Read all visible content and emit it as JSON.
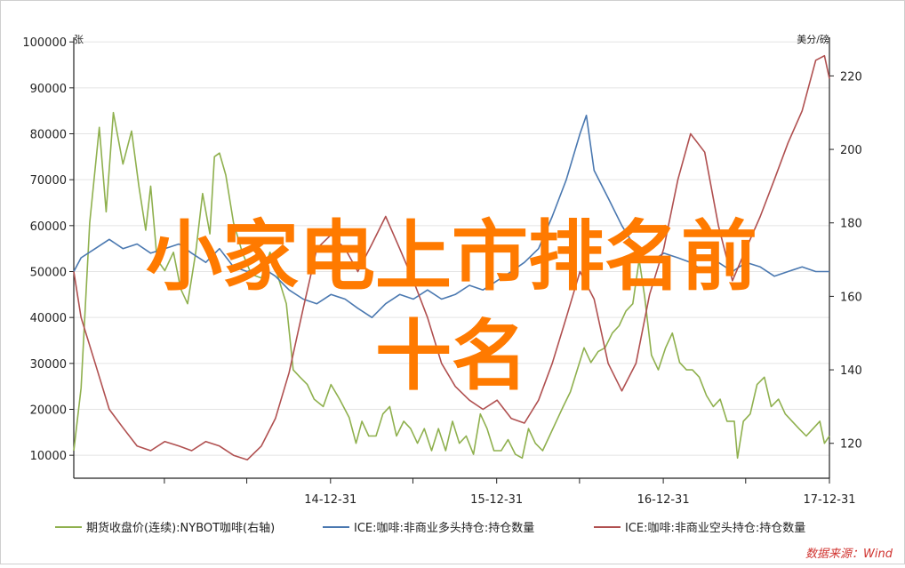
{
  "chart_data": {
    "type": "line",
    "title": "",
    "y_left": {
      "unit": "张",
      "range": [
        5000,
        101000
      ],
      "ticks": [
        10000,
        20000,
        30000,
        40000,
        50000,
        60000,
        70000,
        80000,
        90000,
        100000
      ]
    },
    "y_right": {
      "unit": "美分/磅",
      "range": [
        110.5,
        230.5
      ],
      "ticks": [
        120,
        140,
        160,
        180,
        200,
        220
      ]
    },
    "x_axis": {
      "type": "date",
      "range": [
        "2013-06-15",
        "2017-12-31"
      ],
      "labeled_ticks": [
        "14-12-31",
        "15-12-31",
        "16-12-31",
        "17-12-31"
      ],
      "tick_dates": [
        "2013-12-31",
        "2014-06-30",
        "2014-12-31",
        "2015-06-30",
        "2015-12-31",
        "2016-06-30",
        "2016-12-31",
        "2017-06-30",
        "2017-12-31"
      ]
    },
    "grid": "horizontal",
    "legend_position": "bottom",
    "series": [
      {
        "name": "期货收盘价(连续):NYBOT咖啡(右轴)",
        "axis": "right",
        "color": "#8fb04e",
        "points": [
          [
            "2013-06-15",
            118
          ],
          [
            "2013-07-01",
            135
          ],
          [
            "2013-07-20",
            180
          ],
          [
            "2013-08-10",
            206
          ],
          [
            "2013-08-25",
            183
          ],
          [
            "2013-09-10",
            210
          ],
          [
            "2013-10-01",
            196
          ],
          [
            "2013-10-20",
            205
          ],
          [
            "2013-11-05",
            190
          ],
          [
            "2013-11-20",
            178
          ],
          [
            "2013-12-01",
            190
          ],
          [
            "2013-12-15",
            170
          ],
          [
            "2014-01-01",
            167
          ],
          [
            "2014-01-20",
            172
          ],
          [
            "2014-02-05",
            162
          ],
          [
            "2014-02-20",
            158
          ],
          [
            "2014-03-10",
            172
          ],
          [
            "2014-03-25",
            188
          ],
          [
            "2014-04-10",
            177
          ],
          [
            "2014-04-20",
            198
          ],
          [
            "2014-05-01",
            199
          ],
          [
            "2014-05-15",
            193
          ],
          [
            "2014-06-01",
            180
          ],
          [
            "2014-06-20",
            172
          ],
          [
            "2014-07-10",
            166
          ],
          [
            "2014-08-01",
            165
          ],
          [
            "2014-08-20",
            172
          ],
          [
            "2014-09-05",
            166
          ],
          [
            "2014-09-25",
            158
          ],
          [
            "2014-10-10",
            140
          ],
          [
            "2014-10-25",
            138
          ],
          [
            "2014-11-10",
            136
          ],
          [
            "2014-11-25",
            132
          ],
          [
            "2014-12-15",
            130
          ],
          [
            "2015-01-01",
            136
          ],
          [
            "2015-01-20",
            132
          ],
          [
            "2015-02-10",
            127
          ],
          [
            "2015-02-25",
            120
          ],
          [
            "2015-03-10",
            126
          ],
          [
            "2015-03-25",
            122
          ],
          [
            "2015-04-10",
            122
          ],
          [
            "2015-04-25",
            128
          ],
          [
            "2015-05-10",
            130
          ],
          [
            "2015-05-25",
            122
          ],
          [
            "2015-06-10",
            126
          ],
          [
            "2015-06-25",
            124
          ],
          [
            "2015-07-10",
            120
          ],
          [
            "2015-07-25",
            124
          ],
          [
            "2015-08-10",
            118
          ],
          [
            "2015-08-25",
            124
          ],
          [
            "2015-09-10",
            118
          ],
          [
            "2015-09-25",
            126
          ],
          [
            "2015-10-10",
            120
          ],
          [
            "2015-10-25",
            122
          ],
          [
            "2015-11-10",
            117
          ],
          [
            "2015-11-25",
            128
          ],
          [
            "2015-12-10",
            124
          ],
          [
            "2015-12-25",
            118
          ],
          [
            "2016-01-10",
            118
          ],
          [
            "2016-01-25",
            121
          ],
          [
            "2016-02-10",
            117
          ],
          [
            "2016-02-25",
            116
          ],
          [
            "2016-03-10",
            124
          ],
          [
            "2016-03-25",
            120
          ],
          [
            "2016-04-10",
            118
          ],
          [
            "2016-04-25",
            122
          ],
          [
            "2016-05-10",
            126
          ],
          [
            "2016-05-25",
            130
          ],
          [
            "2016-06-10",
            134
          ],
          [
            "2016-06-25",
            140
          ],
          [
            "2016-07-10",
            146
          ],
          [
            "2016-07-25",
            142
          ],
          [
            "2016-08-10",
            145
          ],
          [
            "2016-08-25",
            146
          ],
          [
            "2016-09-10",
            150
          ],
          [
            "2016-09-25",
            152
          ],
          [
            "2016-10-10",
            156
          ],
          [
            "2016-10-25",
            158
          ],
          [
            "2016-11-08",
            170
          ],
          [
            "2016-11-20",
            160
          ],
          [
            "2016-12-05",
            144
          ],
          [
            "2016-12-20",
            140
          ],
          [
            "2017-01-05",
            146
          ],
          [
            "2017-01-20",
            150
          ],
          [
            "2017-02-05",
            142
          ],
          [
            "2017-02-20",
            140
          ],
          [
            "2017-03-05",
            140
          ],
          [
            "2017-03-20",
            138
          ],
          [
            "2017-04-05",
            133
          ],
          [
            "2017-04-20",
            130
          ],
          [
            "2017-05-05",
            132
          ],
          [
            "2017-05-20",
            126
          ],
          [
            "2017-06-05",
            126
          ],
          [
            "2017-06-12",
            116
          ],
          [
            "2017-06-25",
            126
          ],
          [
            "2017-07-10",
            128
          ],
          [
            "2017-07-25",
            136
          ],
          [
            "2017-08-10",
            138
          ],
          [
            "2017-08-25",
            130
          ],
          [
            "2017-09-10",
            132
          ],
          [
            "2017-09-25",
            128
          ],
          [
            "2017-10-10",
            126
          ],
          [
            "2017-10-25",
            124
          ],
          [
            "2017-11-10",
            122
          ],
          [
            "2017-11-25",
            124
          ],
          [
            "2017-12-10",
            126
          ],
          [
            "2017-12-20",
            120
          ],
          [
            "2017-12-31",
            122
          ]
        ]
      },
      {
        "name": "ICE:咖啡:非商业多头持仓:持仓数量",
        "axis": "left",
        "color": "#4a78b0",
        "points": [
          [
            "2013-06-15",
            50000
          ],
          [
            "2013-07-01",
            53000
          ],
          [
            "2013-08-01",
            55000
          ],
          [
            "2013-09-01",
            57000
          ],
          [
            "2013-10-01",
            55000
          ],
          [
            "2013-11-01",
            56000
          ],
          [
            "2013-12-01",
            54000
          ],
          [
            "2014-01-01",
            55000
          ],
          [
            "2014-02-01",
            56000
          ],
          [
            "2014-03-01",
            54000
          ],
          [
            "2014-04-01",
            52000
          ],
          [
            "2014-05-01",
            55000
          ],
          [
            "2014-06-01",
            51000
          ],
          [
            "2014-07-01",
            50000
          ],
          [
            "2014-08-01",
            51000
          ],
          [
            "2014-09-01",
            49000
          ],
          [
            "2014-10-01",
            46000
          ],
          [
            "2014-11-01",
            44000
          ],
          [
            "2014-12-01",
            43000
          ],
          [
            "2015-01-01",
            45000
          ],
          [
            "2015-02-01",
            44000
          ],
          [
            "2015-03-01",
            42000
          ],
          [
            "2015-04-01",
            40000
          ],
          [
            "2015-05-01",
            43000
          ],
          [
            "2015-06-01",
            45000
          ],
          [
            "2015-07-01",
            44000
          ],
          [
            "2015-08-01",
            46000
          ],
          [
            "2015-09-01",
            44000
          ],
          [
            "2015-10-01",
            45000
          ],
          [
            "2015-11-01",
            47000
          ],
          [
            "2015-12-01",
            46000
          ],
          [
            "2016-01-01",
            48000
          ],
          [
            "2016-02-01",
            50000
          ],
          [
            "2016-03-01",
            52000
          ],
          [
            "2016-04-01",
            55000
          ],
          [
            "2016-05-01",
            62000
          ],
          [
            "2016-06-01",
            70000
          ],
          [
            "2016-07-01",
            80000
          ],
          [
            "2016-07-15",
            84000
          ],
          [
            "2016-08-01",
            72000
          ],
          [
            "2016-09-01",
            66000
          ],
          [
            "2016-10-01",
            60000
          ],
          [
            "2016-11-01",
            55000
          ],
          [
            "2016-12-01",
            52000
          ],
          [
            "2017-01-01",
            54000
          ],
          [
            "2017-02-01",
            53000
          ],
          [
            "2017-03-01",
            52000
          ],
          [
            "2017-04-01",
            50000
          ],
          [
            "2017-05-01",
            52000
          ],
          [
            "2017-06-01",
            50000
          ],
          [
            "2017-07-01",
            52000
          ],
          [
            "2017-08-01",
            51000
          ],
          [
            "2017-09-01",
            49000
          ],
          [
            "2017-10-01",
            50000
          ],
          [
            "2017-11-01",
            51000
          ],
          [
            "2017-12-01",
            50000
          ],
          [
            "2017-12-31",
            50000
          ]
        ]
      },
      {
        "name": "ICE:咖啡:非商业空头持仓:持仓数量",
        "axis": "left",
        "color": "#b05050",
        "points": [
          [
            "2013-06-15",
            50000
          ],
          [
            "2013-07-01",
            40000
          ],
          [
            "2013-08-01",
            30000
          ],
          [
            "2013-09-01",
            20000
          ],
          [
            "2013-10-01",
            16000
          ],
          [
            "2013-11-01",
            12000
          ],
          [
            "2013-12-01",
            11000
          ],
          [
            "2014-01-01",
            13000
          ],
          [
            "2014-02-01",
            12000
          ],
          [
            "2014-03-01",
            11000
          ],
          [
            "2014-04-01",
            13000
          ],
          [
            "2014-05-01",
            12000
          ],
          [
            "2014-06-01",
            10000
          ],
          [
            "2014-07-01",
            9000
          ],
          [
            "2014-08-01",
            12000
          ],
          [
            "2014-09-01",
            18000
          ],
          [
            "2014-10-01",
            28000
          ],
          [
            "2014-11-01",
            42000
          ],
          [
            "2014-12-01",
            55000
          ],
          [
            "2015-01-01",
            58000
          ],
          [
            "2015-02-01",
            55000
          ],
          [
            "2015-03-01",
            50000
          ],
          [
            "2015-04-01",
            56000
          ],
          [
            "2015-05-01",
            62000
          ],
          [
            "2015-06-01",
            55000
          ],
          [
            "2015-07-01",
            48000
          ],
          [
            "2015-08-01",
            40000
          ],
          [
            "2015-09-01",
            30000
          ],
          [
            "2015-10-01",
            25000
          ],
          [
            "2015-11-01",
            22000
          ],
          [
            "2015-12-01",
            20000
          ],
          [
            "2016-01-01",
            22000
          ],
          [
            "2016-02-01",
            18000
          ],
          [
            "2016-03-01",
            17000
          ],
          [
            "2016-04-01",
            22000
          ],
          [
            "2016-05-01",
            30000
          ],
          [
            "2016-06-01",
            40000
          ],
          [
            "2016-07-01",
            50000
          ],
          [
            "2016-08-01",
            44000
          ],
          [
            "2016-09-01",
            30000
          ],
          [
            "2016-10-01",
            24000
          ],
          [
            "2016-11-01",
            30000
          ],
          [
            "2016-12-01",
            45000
          ],
          [
            "2017-01-01",
            55000
          ],
          [
            "2017-02-01",
            70000
          ],
          [
            "2017-03-01",
            80000
          ],
          [
            "2017-04-01",
            76000
          ],
          [
            "2017-05-01",
            60000
          ],
          [
            "2017-06-01",
            48000
          ],
          [
            "2017-07-01",
            55000
          ],
          [
            "2017-08-01",
            62000
          ],
          [
            "2017-09-01",
            70000
          ],
          [
            "2017-10-01",
            78000
          ],
          [
            "2017-11-01",
            85000
          ],
          [
            "2017-12-01",
            96000
          ],
          [
            "2017-12-20",
            97000
          ],
          [
            "2017-12-31",
            92000
          ]
        ]
      }
    ]
  },
  "overlay": {
    "line1": "小家电上市排名前",
    "line2": "十名"
  },
  "source": "数据来源：Wind"
}
